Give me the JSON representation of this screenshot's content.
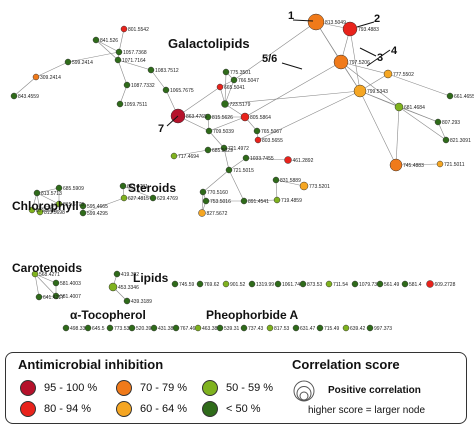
{
  "groups": {
    "galactolipids": "Galactolipids",
    "chlorophyll": "Chlorophyll",
    "steroids": "Steroids",
    "carotenoids": "Carotenoids",
    "lipids": "Lipids",
    "tocopherol": "α-Tocopherol",
    "pheophorbide": "Pheophorbide A"
  },
  "callouts": [
    "1",
    "2",
    "3",
    "4",
    "5/6",
    "7"
  ],
  "palette": {
    "95-100": "#b5122b",
    "80-94": "#e8231c",
    "70-79": "#f07a1a",
    "60-64": "#f5a623",
    "50-59": "#7fb21f",
    "lt50": "#2f6b1a"
  },
  "nodes": [
    {
      "id": "a1",
      "label": "801.5542",
      "cls": "80-94"
    },
    {
      "id": "a2",
      "label": "841.526",
      "cls": "lt50"
    },
    {
      "id": "a3",
      "label": "1057.7368",
      "cls": "lt50"
    },
    {
      "id": "a4",
      "label": "1071.7164",
      "cls": "lt50"
    },
    {
      "id": "a5",
      "label": "599.2414",
      "cls": "lt50"
    },
    {
      "id": "a6",
      "label": "309.2414",
      "cls": "70-79"
    },
    {
      "id": "a7",
      "label": "843.4559",
      "cls": "lt50"
    },
    {
      "id": "a8",
      "label": "1083.7512",
      "cls": "lt50"
    },
    {
      "id": "a9",
      "label": "1087.7332",
      "cls": "lt50"
    },
    {
      "id": "a10",
      "label": "1059.7511",
      "cls": "lt50"
    },
    {
      "id": "a11",
      "label": "775.3501",
      "cls": "lt50"
    },
    {
      "id": "a12",
      "label": "766.5047",
      "cls": "lt50"
    },
    {
      "id": "a13",
      "label": "1065.7675",
      "cls": "lt50"
    },
    {
      "id": "a14",
      "label": "723.5179",
      "cls": "lt50"
    },
    {
      "id": "a15",
      "label": "665.5041",
      "cls": "80-94"
    },
    {
      "id": "a16",
      "label": "813.5049",
      "cls": "70-79"
    },
    {
      "id": "a17",
      "label": "793.4883",
      "cls": "80-94"
    },
    {
      "id": "a18",
      "label": "797.5206",
      "cls": "70-79"
    },
    {
      "id": "a19",
      "label": "799.5343",
      "cls": "60-64"
    },
    {
      "id": "a20",
      "label": "777.5502",
      "cls": "60-64"
    },
    {
      "id": "a21",
      "label": "661.4655",
      "cls": "lt50"
    },
    {
      "id": "a22",
      "label": "681.4684",
      "cls": "50-59"
    },
    {
      "id": "a23",
      "label": "807.293",
      "cls": "lt50"
    },
    {
      "id": "a24",
      "label": "821.3091",
      "cls": "lt50"
    },
    {
      "id": "a25",
      "label": "745.4883",
      "cls": "70-79"
    },
    {
      "id": "a26",
      "label": "721.5011",
      "cls": "60-64"
    },
    {
      "id": "a27",
      "label": "863.4765",
      "cls": "95-100"
    },
    {
      "id": "a28",
      "label": "815.5626",
      "cls": "lt50"
    },
    {
      "id": "a29",
      "label": "709.5039",
      "cls": "lt50"
    },
    {
      "id": "a30",
      "label": "805.5864",
      "cls": "80-94"
    },
    {
      "id": "a31",
      "label": "765.5067",
      "cls": "lt50"
    },
    {
      "id": "a32",
      "label": "803.5655",
      "cls": "80-94"
    },
    {
      "id": "a33",
      "label": "721.4972",
      "cls": "lt50"
    },
    {
      "id": "a34",
      "label": "685.5029",
      "cls": "lt50"
    },
    {
      "id": "a35",
      "label": "461.2892",
      "cls": "80-94"
    },
    {
      "id": "a36",
      "label": "721.5015",
      "cls": "lt50"
    },
    {
      "id": "a37",
      "label": "1033.7455",
      "cls": "lt50"
    },
    {
      "id": "a38",
      "label": "717.4694",
      "cls": "50-59"
    },
    {
      "id": "a39",
      "label": "831.5889",
      "cls": "lt50"
    },
    {
      "id": "a40",
      "label": "773.5201",
      "cls": "60-64"
    },
    {
      "id": "a41",
      "label": "719.4859",
      "cls": "50-59"
    },
    {
      "id": "a42",
      "label": "770.5160",
      "cls": "lt50"
    },
    {
      "id": "a43",
      "label": "753.5016",
      "cls": "lt50"
    },
    {
      "id": "a44",
      "label": "891.4541",
      "cls": "lt50"
    },
    {
      "id": "a45",
      "label": "827.5672",
      "cls": "60-64"
    },
    {
      "id": "c1",
      "label": "685.5909",
      "cls": "lt50"
    },
    {
      "id": "c2",
      "label": "813.5713",
      "cls": "lt50"
    },
    {
      "id": "c3",
      "label": "871.5748",
      "cls": "50-59"
    },
    {
      "id": "c4",
      "label": "815.5773",
      "cls": "50-59"
    },
    {
      "id": "c5",
      "label": "813.5698",
      "cls": "50-59"
    },
    {
      "id": "s1",
      "label": "653.4781",
      "cls": "lt50"
    },
    {
      "id": "s2",
      "label": "627.4815",
      "cls": "50-59"
    },
    {
      "id": "s3",
      "label": "629.4769",
      "cls": "lt50"
    },
    {
      "id": "s4",
      "label": "599.4295",
      "cls": "lt50"
    },
    {
      "id": "s5",
      "label": "595.4665",
      "cls": "lt50"
    },
    {
      "id": "k1",
      "label": "568.4271",
      "cls": "50-59"
    },
    {
      "id": "k2",
      "label": "581.4003",
      "cls": "lt50"
    },
    {
      "id": "k3",
      "label": "641.4217",
      "cls": "lt50"
    },
    {
      "id": "k4",
      "label": "581.4007",
      "cls": "lt50"
    },
    {
      "id": "l1",
      "label": "419.392",
      "cls": "lt50"
    },
    {
      "id": "l2",
      "label": "453.3346",
      "cls": "50-59"
    },
    {
      "id": "l3",
      "label": "439.3189",
      "cls": "lt50"
    },
    {
      "id": "r1",
      "label": "745.59",
      "cls": "lt50"
    },
    {
      "id": "r2",
      "label": "769.62",
      "cls": "lt50"
    },
    {
      "id": "r3",
      "label": "901.52",
      "cls": "50-59"
    },
    {
      "id": "r4",
      "label": "1319.99",
      "cls": "lt50"
    },
    {
      "id": "r5",
      "label": "1061.74",
      "cls": "lt50"
    },
    {
      "id": "r6",
      "label": "873.53",
      "cls": "lt50"
    },
    {
      "id": "r7",
      "label": "711.54",
      "cls": "50-59"
    },
    {
      "id": "r8",
      "label": "1079.73",
      "cls": "lt50"
    },
    {
      "id": "r9",
      "label": "561.49",
      "cls": "lt50"
    },
    {
      "id": "r10",
      "label": "581.4",
      "cls": "lt50"
    },
    {
      "id": "r11",
      "label": "609.2728",
      "cls": "80-94"
    },
    {
      "id": "b1",
      "label": "498.33",
      "cls": "lt50"
    },
    {
      "id": "b2",
      "label": "645.5",
      "cls": "lt50"
    },
    {
      "id": "b3",
      "label": "773.53",
      "cls": "lt50"
    },
    {
      "id": "b4",
      "label": "520.39",
      "cls": "lt50"
    },
    {
      "id": "b5",
      "label": "431.38",
      "cls": "lt50"
    },
    {
      "id": "b6",
      "label": "767.46",
      "cls": "lt50"
    },
    {
      "id": "b7",
      "label": "463.38",
      "cls": "50-59"
    },
    {
      "id": "b8",
      "label": "539.31",
      "cls": "lt50"
    },
    {
      "id": "b9",
      "label": "737.43",
      "cls": "lt50"
    },
    {
      "id": "b10",
      "label": "817.53",
      "cls": "50-59"
    },
    {
      "id": "b11",
      "label": "631.47",
      "cls": "lt50"
    },
    {
      "id": "b12",
      "label": "715.49",
      "cls": "lt50"
    },
    {
      "id": "b13",
      "label": "639.42",
      "cls": "50-59"
    },
    {
      "id": "b14",
      "label": "997.373",
      "cls": "lt50"
    }
  ],
  "legend": {
    "inhibition_title": "Antimicrobial inhibition",
    "items": [
      {
        "label": "95 - 100 %",
        "color": "#b5122b"
      },
      {
        "label": "70 - 79 %",
        "color": "#f07a1a"
      },
      {
        "label": "50 - 59 %",
        "color": "#7fb21f"
      },
      {
        "label": "80 - 94 %",
        "color": "#e8231c"
      },
      {
        "label": "60 - 64 %",
        "color": "#f5a623"
      },
      {
        "label": "< 50 %",
        "color": "#2f6b1a"
      }
    ],
    "correlation_title": "Correlation score",
    "positive": "Positive correlation",
    "note": "higher score = larger node"
  }
}
